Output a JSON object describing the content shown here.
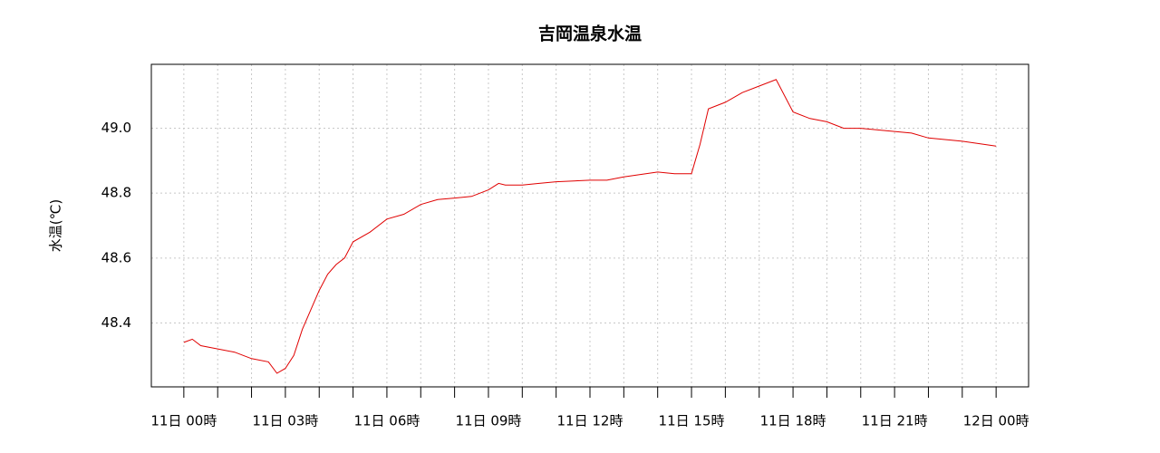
{
  "chart_data": {
    "type": "line",
    "title": "吉岡温泉水温",
    "y_label": "水温(℃)",
    "x": [
      0,
      0.25,
      0.5,
      1,
      1.5,
      2,
      2.5,
      2.75,
      3,
      3.25,
      3.5,
      3.75,
      4,
      4.25,
      4.5,
      4.75,
      5,
      5.5,
      6,
      6.5,
      7,
      7.5,
      8,
      8.5,
      9,
      9.3,
      9.5,
      10,
      10.5,
      11,
      12,
      12.5,
      13,
      14,
      14.5,
      15,
      15.25,
      15.5,
      16,
      16.5,
      17,
      17.5,
      18,
      18.5,
      19,
      19.5,
      20,
      21,
      21.5,
      22,
      23,
      24
    ],
    "series": [
      {
        "name": "水温",
        "color": "#e00000",
        "values": [
          48.34,
          48.35,
          48.33,
          48.32,
          48.31,
          48.29,
          48.28,
          48.245,
          48.26,
          48.3,
          48.38,
          48.44,
          48.5,
          48.55,
          48.58,
          48.6,
          48.65,
          48.68,
          48.72,
          48.735,
          48.765,
          48.78,
          48.785,
          48.79,
          48.81,
          48.83,
          48.825,
          48.825,
          48.83,
          48.835,
          48.84,
          48.84,
          48.85,
          48.865,
          48.86,
          48.86,
          48.95,
          49.06,
          49.08,
          49.11,
          49.13,
          49.15,
          49.05,
          49.03,
          49.02,
          49.0,
          49.0,
          48.99,
          48.985,
          48.97,
          48.96,
          48.945
        ]
      }
    ],
    "xlim": [
      -0.96,
      24.96
    ],
    "ylim": [
      48.203,
      49.197
    ],
    "xticks": [
      {
        "value": 0,
        "label": "11日 00時"
      },
      {
        "value": 1,
        "label": null
      },
      {
        "value": 2,
        "label": null
      },
      {
        "value": 3,
        "label": "11日 03時"
      },
      {
        "value": 4,
        "label": null
      },
      {
        "value": 5,
        "label": null
      },
      {
        "value": 6,
        "label": "11日 06時"
      },
      {
        "value": 7,
        "label": null
      },
      {
        "value": 8,
        "label": null
      },
      {
        "value": 9,
        "label": "11日 09時"
      },
      {
        "value": 10,
        "label": null
      },
      {
        "value": 11,
        "label": null
      },
      {
        "value": 12,
        "label": "11日 12時"
      },
      {
        "value": 13,
        "label": null
      },
      {
        "value": 14,
        "label": null
      },
      {
        "value": 15,
        "label": "11日 15時"
      },
      {
        "value": 16,
        "label": null
      },
      {
        "value": 17,
        "label": null
      },
      {
        "value": 18,
        "label": "11日 18時"
      },
      {
        "value": 19,
        "label": null
      },
      {
        "value": 20,
        "label": null
      },
      {
        "value": 21,
        "label": "11日 21時"
      },
      {
        "value": 22,
        "label": null
      },
      {
        "value": 23,
        "label": null
      },
      {
        "value": 24,
        "label": "12日 00時"
      }
    ],
    "yticks": [
      48.4,
      48.6,
      48.8,
      {
        "value": 49,
        "label": "49.0"
      }
    ],
    "grid": true
  }
}
